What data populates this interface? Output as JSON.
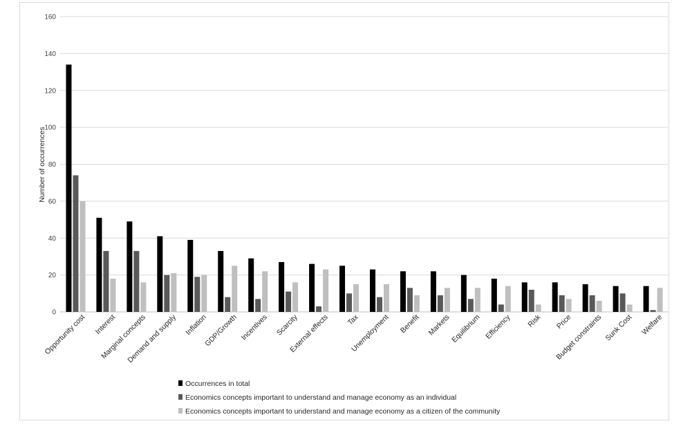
{
  "chart_data": {
    "type": "bar",
    "title": "",
    "xlabel": "",
    "ylabel": "Number of occurrences",
    "ylim": [
      0,
      160
    ],
    "yticks": [
      0,
      20,
      40,
      60,
      80,
      100,
      120,
      140,
      160
    ],
    "grid": true,
    "legend_position": "bottom",
    "categories": [
      "Opportunity cost",
      "Interest",
      "Marginal concepts",
      "Demand and supply",
      "Inflation",
      "GDP/Growth",
      "Incentives",
      "Scarcity",
      "External effects",
      "Tax",
      "Unemployment",
      "Benefit",
      "Markets",
      "Equilibrium",
      "Efficiency",
      "Risk",
      "Price",
      "Budget constraints",
      "Sunk Cost",
      "Welfare"
    ],
    "series": [
      {
        "name": "Occurrences in total",
        "color": "#000000",
        "values": [
          134,
          51,
          49,
          41,
          39,
          33,
          29,
          27,
          26,
          25,
          23,
          22,
          22,
          20,
          18,
          16,
          16,
          15,
          14,
          14
        ]
      },
      {
        "name": "Economics concepts important to understand and manage economy as an individual",
        "color": "#595959",
        "values": [
          74,
          33,
          33,
          20,
          19,
          8,
          7,
          11,
          3,
          10,
          8,
          13,
          9,
          7,
          4,
          12,
          9,
          9,
          10,
          1
        ]
      },
      {
        "name": "Economics concepts important  to understand and manage economy as a citizen of the community",
        "color": "#bfbfbf",
        "values": [
          60,
          18,
          16,
          21,
          20,
          25,
          22,
          16,
          23,
          15,
          15,
          9,
          13,
          13,
          14,
          4,
          7,
          6,
          4,
          13
        ]
      }
    ]
  }
}
